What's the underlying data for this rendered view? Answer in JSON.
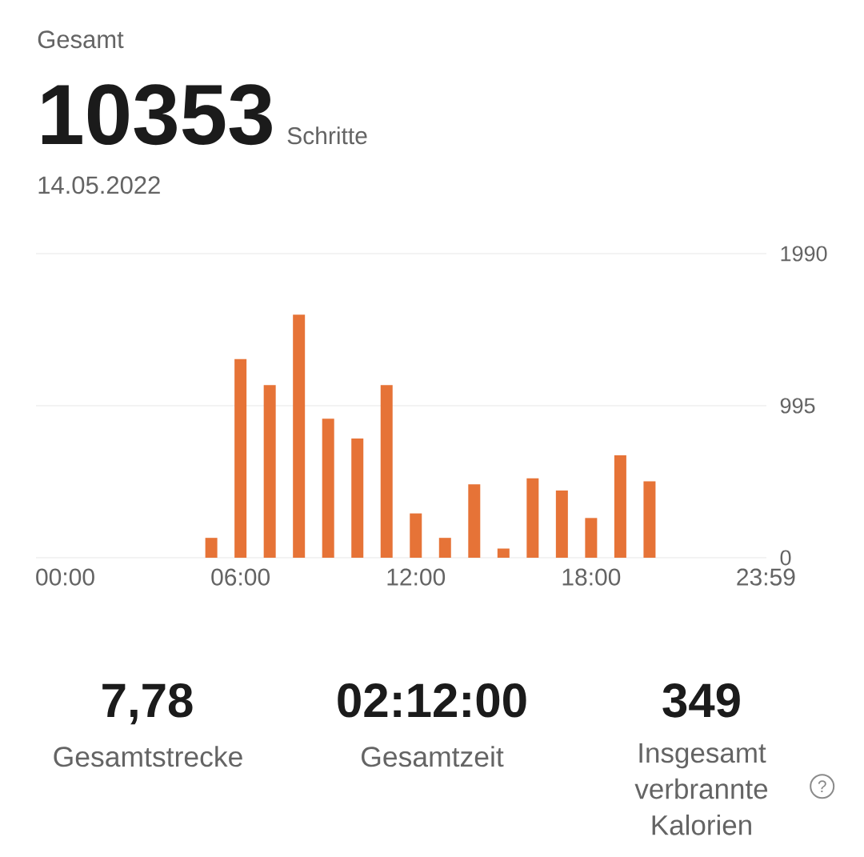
{
  "chart_data": {
    "type": "bar",
    "title": "Gesamt",
    "x": [
      5,
      6,
      7,
      8,
      9,
      10,
      11,
      12,
      13,
      14,
      15,
      16,
      17,
      18,
      19,
      20
    ],
    "values": [
      130,
      1300,
      1130,
      1590,
      910,
      780,
      1130,
      290,
      130,
      480,
      60,
      520,
      440,
      260,
      670,
      500
    ],
    "color": "#e67337",
    "xlim": [
      -1,
      24
    ],
    "xticks": [
      {
        "value": 0,
        "label": "00:00"
      },
      {
        "value": 6,
        "label": "06:00"
      },
      {
        "value": 12,
        "label": "12:00"
      },
      {
        "value": 18,
        "label": "18:00"
      },
      {
        "value": 23.983,
        "label": "23:59"
      }
    ],
    "ylim": [
      0,
      1990
    ],
    "yticks": [
      0,
      995,
      1990
    ],
    "grid": "y",
    "annotations": [
      "10353",
      "Schritte",
      "14.05.2022",
      "7,78",
      "Gesamtstrecke",
      "02:12:00",
      "Gesamtzeit",
      "349",
      "Insgesamt verbrannte Kalorien",
      "?"
    ]
  }
}
